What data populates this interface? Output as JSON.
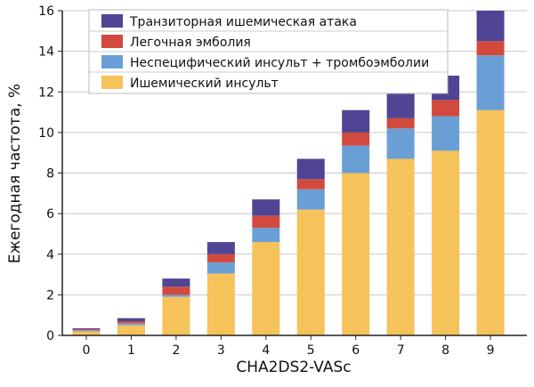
{
  "chart_data": {
    "type": "bar",
    "stacked": true,
    "xlabel": "CHA2DS2-VASc",
    "ylabel": "Ежегодная частота, %",
    "ylim": [
      0,
      16
    ],
    "yticks": [
      0,
      2,
      4,
      6,
      8,
      10,
      12,
      14,
      16
    ],
    "grid": true,
    "legend_position": "top-left",
    "categories": [
      "0",
      "1",
      "2",
      "3",
      "4",
      "5",
      "6",
      "7",
      "8",
      "9"
    ],
    "series": [
      {
        "name": "Ишемический инсульт",
        "color": "#f6c25a",
        "values": [
          0.2,
          0.5,
          1.9,
          3.05,
          4.6,
          6.2,
          8.0,
          8.7,
          9.1,
          11.1
        ]
      },
      {
        "name": "Неспецифический инсульт + тромбоэмболии",
        "color": "#6a9fd6",
        "values": [
          0.05,
          0.1,
          0.1,
          0.55,
          0.7,
          1.0,
          1.35,
          1.5,
          1.7,
          2.7
        ]
      },
      {
        "name": "Легочная эмболия",
        "color": "#d24a3e",
        "values": [
          0.05,
          0.1,
          0.4,
          0.4,
          0.6,
          0.5,
          0.65,
          0.5,
          0.8,
          0.7
        ]
      },
      {
        "name": "Транзиторная ишемическая атака",
        "color": "#4f4594",
        "values": [
          0.05,
          0.15,
          0.4,
          0.6,
          0.8,
          1.0,
          1.1,
          1.7,
          1.2,
          1.5
        ]
      }
    ]
  }
}
